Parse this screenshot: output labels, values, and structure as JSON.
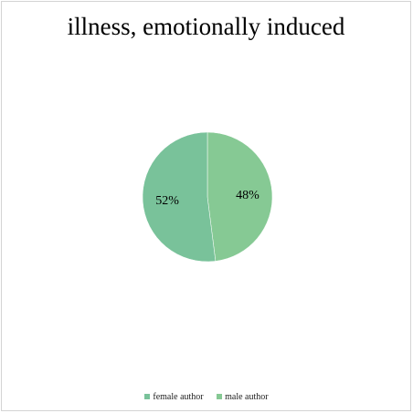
{
  "chart_data": {
    "type": "pie",
    "title": "illness, emotionally induced",
    "slices": [
      {
        "name": "female author",
        "value": 52,
        "label": "52%",
        "color": "#79c29a"
      },
      {
        "name": "male author",
        "value": 48,
        "label": "48%",
        "color": "#86c994"
      }
    ],
    "legend_position": "bottom"
  }
}
